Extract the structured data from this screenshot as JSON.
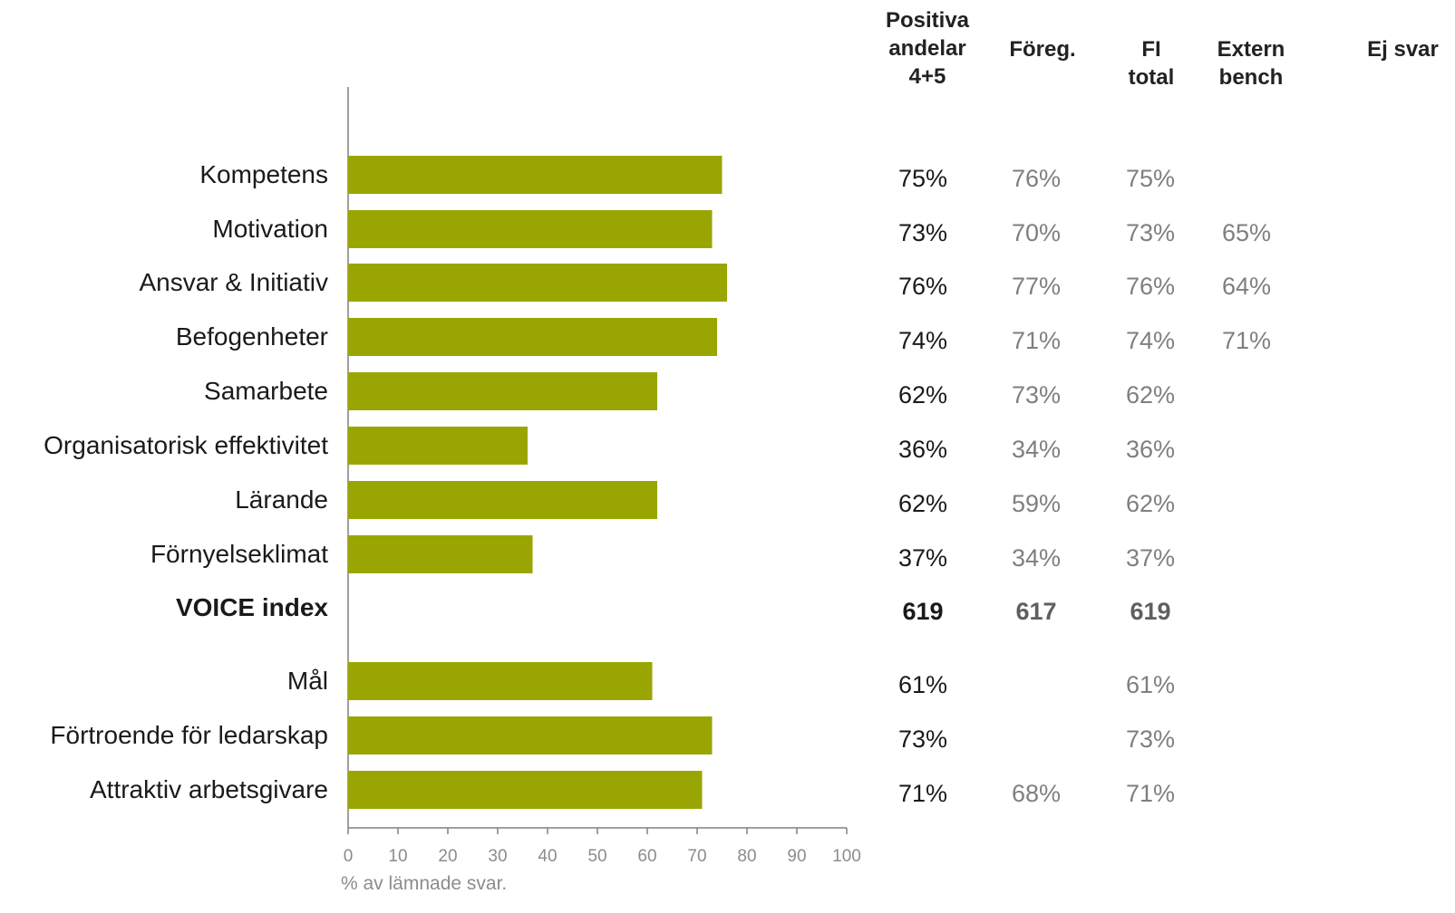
{
  "headers": {
    "positive": "Positiva\nandelar\n4+5",
    "prev": "Föreg.",
    "fi_total": "FI\ntotal",
    "extern": "Extern\nbench",
    "no_answer": "Ej svar"
  },
  "colors": {
    "bar": "#99A601",
    "label": "#1a1a1a",
    "positive_text": "#1a1a1a",
    "muted_text": "#7f7f7f",
    "bold_muted": "#5f5f5f",
    "axis": "#808080",
    "tick_text": "#8c8c8c"
  },
  "chart_data": {
    "type": "bar",
    "orientation": "horizontal",
    "xlim": [
      0,
      100
    ],
    "xticks": [
      0,
      10,
      20,
      30,
      40,
      50,
      60,
      70,
      80,
      90,
      100
    ],
    "xlabel": "% av lämnade svar.",
    "rows": [
      {
        "label": "Kompetens",
        "value": 75,
        "positive": "75%",
        "prev": "76%",
        "fi_total": "75%",
        "extern": "",
        "no_answer": ""
      },
      {
        "label": "Motivation",
        "value": 73,
        "positive": "73%",
        "prev": "70%",
        "fi_total": "73%",
        "extern": "65%",
        "no_answer": ""
      },
      {
        "label": "Ansvar & Initiativ",
        "value": 76,
        "positive": "76%",
        "prev": "77%",
        "fi_total": "76%",
        "extern": "64%",
        "no_answer": ""
      },
      {
        "label": "Befogenheter",
        "value": 74,
        "positive": "74%",
        "prev": "71%",
        "fi_total": "74%",
        "extern": "71%",
        "no_answer": ""
      },
      {
        "label": "Samarbete",
        "value": 62,
        "positive": "62%",
        "prev": "73%",
        "fi_total": "62%",
        "extern": "",
        "no_answer": ""
      },
      {
        "label": "Organisatorisk effektivitet",
        "value": 36,
        "positive": "36%",
        "prev": "34%",
        "fi_total": "36%",
        "extern": "",
        "no_answer": ""
      },
      {
        "label": "Lärande",
        "value": 62,
        "positive": "62%",
        "prev": "59%",
        "fi_total": "62%",
        "extern": "",
        "no_answer": ""
      },
      {
        "label": "Förnyelseklimat",
        "value": 37,
        "positive": "37%",
        "prev": "34%",
        "fi_total": "37%",
        "extern": "",
        "no_answer": ""
      },
      {
        "label": "VOICE index",
        "value": null,
        "bold": true,
        "positive": "619",
        "prev": "617",
        "fi_total": "619",
        "extern": "",
        "no_answer": ""
      },
      {
        "label": "Mål",
        "value": 61,
        "positive": "61%",
        "prev": "",
        "fi_total": "61%",
        "extern": "",
        "no_answer": ""
      },
      {
        "label": "Förtroende för ledarskap",
        "value": 73,
        "positive": "73%",
        "prev": "",
        "fi_total": "73%",
        "extern": "",
        "no_answer": ""
      },
      {
        "label": "Attraktiv arbetsgivare",
        "value": 71,
        "positive": "71%",
        "prev": "68%",
        "fi_total": "71%",
        "extern": "",
        "no_answer": ""
      }
    ]
  }
}
